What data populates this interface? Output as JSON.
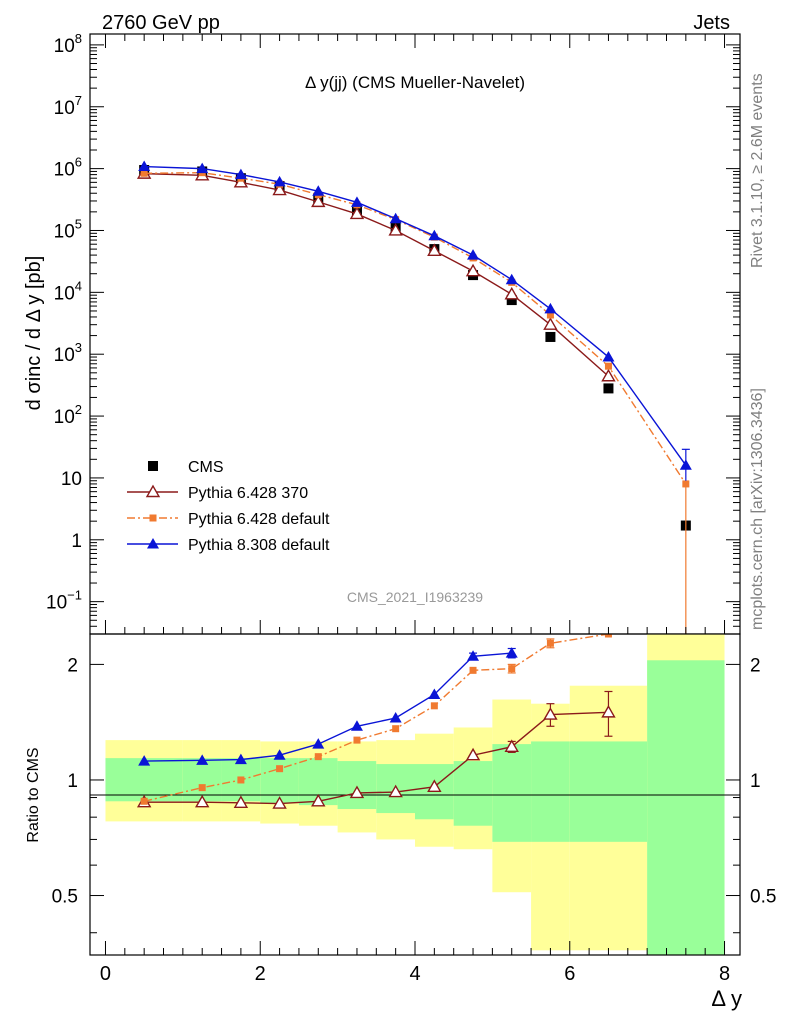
{
  "header": {
    "left": "2760 GeV pp",
    "right": "Jets"
  },
  "side_text": {
    "top": "Rivet 3.1.10, ≥ 2.6M events",
    "bottom": "mcplots.cern.ch [arXiv:1306.3436]"
  },
  "colors": {
    "cms": "#000000",
    "py6_370": "#8b1a1a",
    "py6_def": "#f07a30",
    "py8": "#0a14d6",
    "band_inner": "#99ff99",
    "band_outer": "#ffff99"
  },
  "chart_data": [
    {
      "type": "scatter",
      "title": "Δ y(jj) (CMS Mueller-Navelet)",
      "watermark": "CMS_2021_I1963239",
      "ylabel": "d σinc / d Δ y [pb]",
      "xlabel": "",
      "yscale": "log",
      "xlim": [
        -0.2,
        8.2
      ],
      "ylim": [
        0.03,
        150000000
      ],
      "y_ticks": [
        {
          "value": 100000000,
          "label": "10^8"
        },
        {
          "value": 10000000,
          "label": "10^7"
        },
        {
          "value": 1000000,
          "label": "10^6"
        },
        {
          "value": 100000,
          "label": "10^5"
        },
        {
          "value": 10000,
          "label": "10^4"
        },
        {
          "value": 1000,
          "label": "10^3"
        },
        {
          "value": 100,
          "label": "10^2"
        },
        {
          "value": 10,
          "label": "10"
        },
        {
          "value": 1,
          "label": "1"
        },
        {
          "value": 0.1,
          "label": "10^-1"
        }
      ],
      "legend": "bottom-left",
      "series": [
        {
          "name": "CMS",
          "marker": "square",
          "x": [
            0.5,
            1.25,
            1.75,
            2.25,
            2.75,
            3.25,
            3.75,
            4.25,
            4.75,
            5.25,
            5.75,
            6.5,
            7.5
          ],
          "y": [
            950000,
            900000,
            700000,
            520000,
            330000,
            200000,
            110000,
            50000,
            19000,
            7500,
            1900,
            280,
            1.7
          ]
        },
        {
          "name": "Pythia 6.428 370",
          "marker": "open-triangle",
          "x": [
            0.5,
            1.25,
            1.75,
            2.25,
            2.75,
            3.25,
            3.75,
            4.25,
            4.75,
            5.25,
            5.75,
            6.5
          ],
          "y": [
            830000,
            780000,
            600000,
            450000,
            290000,
            185000,
            100000,
            47000,
            22000,
            9300,
            3000,
            440
          ]
        },
        {
          "name": "Pythia 6.428 default",
          "marker": "small-square",
          "x": [
            0.5,
            1.25,
            1.75,
            2.25,
            2.75,
            3.25,
            3.75,
            4.25,
            4.75,
            5.25,
            5.75,
            6.5,
            7.5
          ],
          "y": [
            840000,
            860000,
            700000,
            560000,
            380000,
            260000,
            150000,
            78000,
            36000,
            14500,
            4300,
            640,
            8
          ],
          "yerr_low": [
            0,
            0,
            0,
            0,
            0,
            0,
            0,
            0,
            0,
            0,
            0,
            0,
            7.97
          ],
          "yerr_high": [
            0,
            0,
            0,
            0,
            0,
            0,
            0,
            0,
            0,
            0,
            0,
            0,
            0
          ]
        },
        {
          "name": "Pythia 8.308 default",
          "marker": "filled-triangle",
          "x": [
            0.5,
            1.25,
            1.75,
            2.25,
            2.75,
            3.25,
            3.75,
            4.25,
            4.75,
            5.25,
            5.75,
            6.5,
            7.5
          ],
          "y": [
            1080000,
            1000000,
            800000,
            610000,
            430000,
            285000,
            155000,
            82000,
            40000,
            16000,
            5400,
            900,
            16
          ],
          "yerr_low": [
            0,
            0,
            0,
            0,
            0,
            0,
            0,
            0,
            0,
            0,
            0,
            0,
            7
          ],
          "yerr_high": [
            0,
            0,
            0,
            0,
            0,
            0,
            0,
            0,
            0,
            0,
            0,
            0,
            13
          ]
        }
      ]
    },
    {
      "type": "scatter",
      "ylabel": "Ratio to CMS",
      "xlabel": "Δ y",
      "yscale": "log",
      "xlim": [
        -0.2,
        8.2
      ],
      "ylim": [
        0.35,
        2.4
      ],
      "x_ticks": [
        0,
        2,
        4,
        6,
        8
      ],
      "y_ticks": [
        0.5,
        1,
        2
      ],
      "bands": {
        "edges": [
          0,
          1,
          1.5,
          2,
          2.5,
          3,
          3.5,
          4,
          4.5,
          5,
          5.5,
          6,
          7,
          8
        ],
        "inner_low": [
          0.88,
          0.88,
          0.88,
          0.87,
          0.86,
          0.84,
          0.82,
          0.79,
          0.76,
          0.69,
          0.69,
          0.69,
          0.35
        ],
        "inner_high": [
          1.14,
          1.14,
          1.14,
          1.14,
          1.14,
          1.12,
          1.1,
          1.1,
          1.12,
          1.24,
          1.26,
          1.26,
          2.05
        ],
        "outer_low": [
          0.78,
          0.78,
          0.78,
          0.77,
          0.76,
          0.73,
          0.7,
          0.67,
          0.66,
          0.51,
          0.36,
          0.36,
          0.35
        ],
        "outer_high": [
          1.27,
          1.27,
          1.27,
          1.26,
          1.26,
          1.26,
          1.27,
          1.32,
          1.37,
          1.62,
          1.58,
          1.76,
          2.4
        ]
      },
      "series": [
        {
          "name": "Pythia 6.428 370",
          "marker": "open-triangle",
          "x": [
            0.5,
            1.25,
            1.75,
            2.25,
            2.75,
            3.25,
            3.75,
            4.25,
            4.75,
            5.25,
            5.75,
            6.5
          ],
          "y": [
            0.875,
            0.875,
            0.872,
            0.868,
            0.88,
            0.925,
            0.93,
            0.96,
            1.16,
            1.22,
            1.48,
            1.5
          ],
          "yerr": [
            0,
            0,
            0,
            0,
            0,
            0,
            0,
            0,
            0,
            0.04,
            0.1,
            0.2
          ]
        },
        {
          "name": "Pythia 6.428 default",
          "marker": "small-square",
          "x": [
            0.5,
            1.25,
            1.75,
            2.25,
            2.75,
            3.25,
            3.75,
            4.25,
            4.75,
            5.25,
            5.75,
            6.5
          ],
          "y": [
            0.88,
            0.955,
            1.0,
            1.07,
            1.15,
            1.27,
            1.36,
            1.56,
            1.93,
            1.95,
            2.27,
            2.4
          ],
          "yerr": [
            0,
            0,
            0,
            0,
            0,
            0,
            0,
            0,
            0,
            0.05,
            0.06,
            0
          ]
        },
        {
          "name": "Pythia 8.308 default",
          "marker": "filled-triangle",
          "x": [
            0.5,
            1.25,
            1.75,
            2.25,
            2.75,
            3.25,
            3.75,
            4.25,
            4.75,
            5.25
          ],
          "y": [
            1.12,
            1.125,
            1.13,
            1.16,
            1.24,
            1.38,
            1.45,
            1.67,
            2.1,
            2.14
          ],
          "yerr": [
            0,
            0,
            0,
            0,
            0,
            0,
            0,
            0,
            0.04,
            0.06
          ]
        }
      ]
    }
  ]
}
